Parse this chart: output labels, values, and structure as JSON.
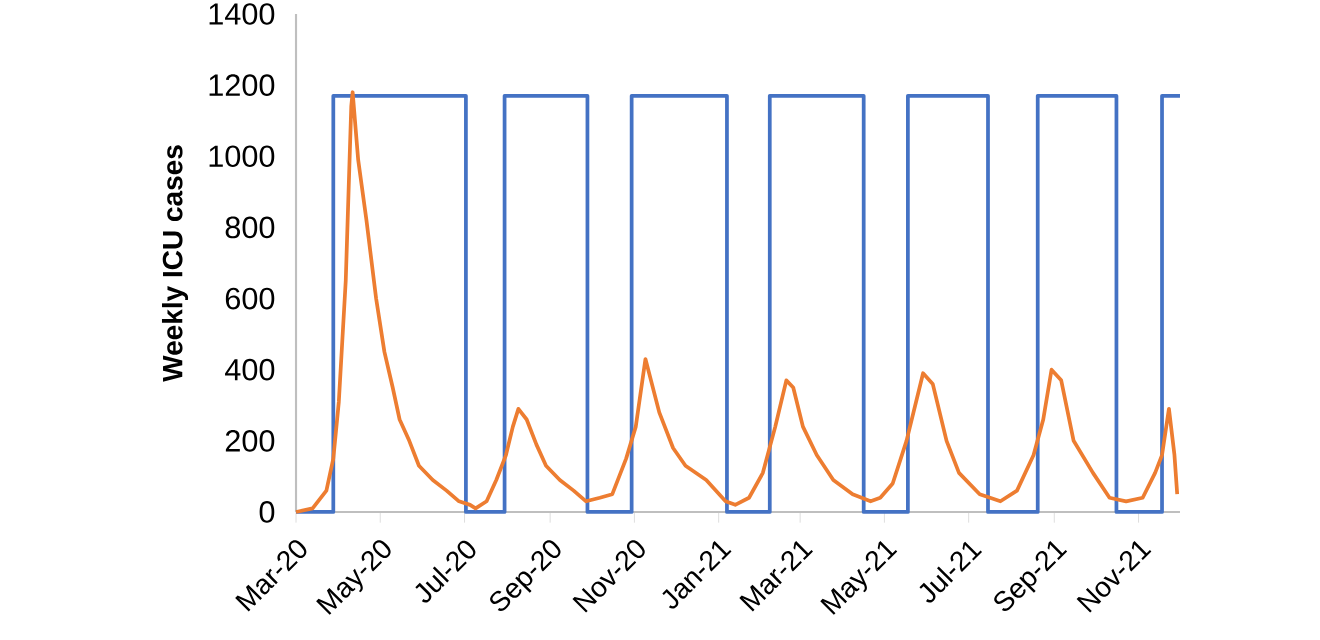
{
  "chart_data": {
    "type": "line",
    "ylabel": "Weekly ICU cases",
    "xlim": [
      "2020-03-01",
      "2021-12-01"
    ],
    "xticks": [
      {
        "value": "2020-03-01",
        "label": "Mar-20"
      },
      {
        "value": "2020-05-01",
        "label": "May-20"
      },
      {
        "value": "2020-07-01",
        "label": "Jul-20"
      },
      {
        "value": "2020-09-01",
        "label": "Sep-20"
      },
      {
        "value": "2020-11-01",
        "label": "Nov-20"
      },
      {
        "value": "2021-01-01",
        "label": "Jan-21"
      },
      {
        "value": "2021-03-01",
        "label": "Mar-21"
      },
      {
        "value": "2021-05-01",
        "label": "May-21"
      },
      {
        "value": "2021-07-01",
        "label": "Jul-21"
      },
      {
        "value": "2021-09-01",
        "label": "Sep-21"
      },
      {
        "value": "2021-11-01",
        "label": "Nov-21"
      }
    ],
    "ylim": [
      0,
      1400
    ],
    "yticks": [
      0,
      200,
      400,
      600,
      800,
      1000,
      1200,
      1400
    ],
    "series": [
      {
        "type": "step",
        "color": "#4472c4",
        "x": [
          "2020-03-01",
          "2020-03-28",
          "2020-07-02",
          "2020-07-30",
          "2020-09-28",
          "2020-10-30",
          "2021-01-07",
          "2021-02-07",
          "2021-04-16",
          "2021-05-18",
          "2021-07-15",
          "2021-08-20",
          "2021-10-16",
          "2021-11-18",
          "2021-12-01"
        ],
        "values": [
          0,
          1170,
          0,
          1170,
          0,
          1170,
          0,
          1170,
          0,
          1170,
          0,
          1170,
          0,
          1170,
          1170
        ]
      },
      {
        "type": "line",
        "color": "#ed7d31",
        "x": [
          "2020-03-01",
          "2020-03-13",
          "2020-03-23",
          "2020-03-28",
          "2020-04-01",
          "2020-04-06",
          "2020-04-10",
          "2020-04-11",
          "2020-04-15",
          "2020-04-21",
          "2020-04-28",
          "2020-05-04",
          "2020-05-10",
          "2020-05-15",
          "2020-05-22",
          "2020-05-29",
          "2020-06-08",
          "2020-06-18",
          "2020-06-27",
          "2020-07-05",
          "2020-07-09",
          "2020-07-17",
          "2020-07-24",
          "2020-07-31",
          "2020-08-05",
          "2020-08-09",
          "2020-08-15",
          "2020-08-22",
          "2020-08-29",
          "2020-09-08",
          "2020-09-18",
          "2020-09-27",
          "2020-10-07",
          "2020-10-16",
          "2020-10-26",
          "2020-11-02",
          "2020-11-09",
          "2020-11-19",
          "2020-11-29",
          "2020-12-08",
          "2020-12-23",
          "2021-01-06",
          "2021-01-13",
          "2021-01-23",
          "2021-02-02",
          "2021-02-11",
          "2021-02-19",
          "2021-02-24",
          "2021-03-03",
          "2021-03-13",
          "2021-03-25",
          "2021-04-08",
          "2021-04-21",
          "2021-04-28",
          "2021-05-07",
          "2021-05-17",
          "2021-05-29",
          "2021-06-05",
          "2021-06-15",
          "2021-06-24",
          "2021-07-09",
          "2021-07-24",
          "2021-08-05",
          "2021-08-17",
          "2021-08-24",
          "2021-08-30",
          "2021-09-06",
          "2021-09-15",
          "2021-09-29",
          "2021-10-11",
          "2021-10-23",
          "2021-11-04",
          "2021-11-13",
          "2021-11-18",
          "2021-11-23",
          "2021-11-27",
          "2021-11-29"
        ],
        "values": [
          0,
          10,
          60,
          150,
          310,
          650,
          1140,
          1180,
          990,
          820,
          600,
          450,
          350,
          260,
          200,
          130,
          90,
          60,
          30,
          20,
          10,
          30,
          90,
          160,
          240,
          290,
          260,
          190,
          130,
          90,
          60,
          30,
          40,
          50,
          150,
          240,
          430,
          280,
          180,
          130,
          90,
          30,
          20,
          40,
          110,
          240,
          370,
          350,
          240,
          160,
          90,
          50,
          30,
          40,
          80,
          200,
          390,
          360,
          200,
          110,
          50,
          30,
          60,
          160,
          260,
          400,
          370,
          200,
          110,
          40,
          30,
          40,
          110,
          160,
          290,
          160,
          50
        ]
      }
    ]
  }
}
